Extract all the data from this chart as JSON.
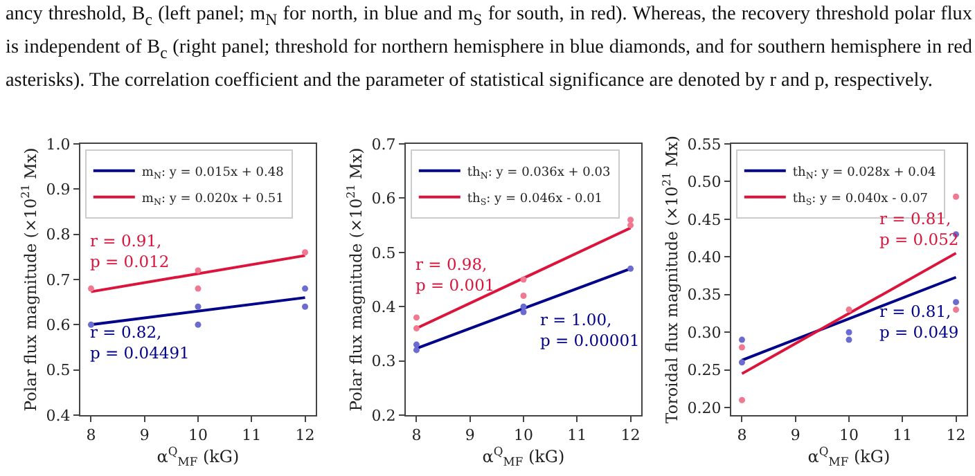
{
  "chart_data": [
    {
      "type": "line",
      "xlabel": "α$^{Q}$$_{MF}$ (kG)",
      "ylabel": "Polar flux magnitude (×10$^{21}$ Mx)",
      "xlim": [
        7.8,
        12.2
      ],
      "xticks": [
        8,
        9,
        10,
        11,
        12
      ],
      "ylim": [
        0.4,
        1.0
      ],
      "yticks": [
        0.4,
        0.5,
        0.6,
        0.7,
        0.8,
        0.9,
        {
          "value": 1.0,
          "label": "1.0"
        }
      ],
      "legend": "top left",
      "grid": false,
      "series": [
        {
          "name": "m$_{N}$: y = 0.015x + 0.48",
          "color": "#00008b",
          "x": [
            8,
            12
          ],
          "values": [
            0.6,
            0.66
          ]
        },
        {
          "name": "m$_{N}$: y = 0.020x + 0.51",
          "color": "#dc143c",
          "x": [
            8,
            12
          ],
          "values": [
            0.673,
            0.753
          ]
        },
        {
          "type": "scatter",
          "marker": "circle",
          "color": "#6b6bd0",
          "x": [
            8,
            10,
            10,
            12,
            12
          ],
          "values": [
            0.6,
            0.6,
            0.64,
            0.64,
            0.68
          ]
        },
        {
          "type": "scatter",
          "marker": "circle",
          "color": "#f07890",
          "x": [
            8,
            10,
            10,
            12
          ],
          "values": [
            0.68,
            0.68,
            0.72,
            0.76
          ]
        }
      ],
      "annotations": [
        "ancy threshold, B$_{c}$ (left panel; m$_{N}$ for north, in blue and m$_{S}$ for south, in red). Whereas, the recovery threshold polar flux is independent of B$_{c}$ (right panel; threshold for northern hemisphere in blue diamonds, and for southern hemisphere in red asterisks). The correlation coefficient and the parameter of statistical significance are denoted by r and p, respectively.",
        "r = 0.82,\np = 0.04491",
        "r = 0.91,\np = 0.012"
      ]
    },
    {
      "type": "line",
      "xlabel": "α$^{Q}$$_{MF}$ (kG)",
      "ylabel": "Polar flux magnitude (×10$^{21}$ Mx)",
      "xlim": [
        7.8,
        12.2
      ],
      "xticks": [
        8,
        9,
        10,
        11,
        12
      ],
      "ylim": [
        0.2,
        0.7
      ],
      "yticks": [
        0.2,
        0.3,
        0.4,
        0.5,
        0.6,
        0.7
      ],
      "legend": "top left",
      "grid": false,
      "series": [
        {
          "name": "th$_{N}$: y = 0.036x + 0.03",
          "color": "#00008b",
          "x": [
            8,
            12
          ],
          "values": [
            0.323,
            0.47
          ]
        },
        {
          "name": "th$_{S}$: y = 0.046x - 0.01",
          "color": "#dc143c",
          "x": [
            8,
            12
          ],
          "values": [
            0.36,
            0.545
          ]
        },
        {
          "type": "scatter",
          "marker": "circle",
          "color": "#6b6bd0",
          "x": [
            8,
            8,
            10,
            10,
            12
          ],
          "values": [
            0.33,
            0.32,
            0.4,
            0.39,
            0.47
          ]
        },
        {
          "type": "scatter",
          "marker": "circle",
          "color": "#f07890",
          "x": [
            8,
            8,
            10,
            10,
            12,
            12
          ],
          "values": [
            0.38,
            0.36,
            0.45,
            0.42,
            0.56,
            0.55
          ]
        }
      ],
      "annotations": [
        "r = 1.00,\np = 0.00001",
        "r = 0.98,\np = 0.001"
      ]
    },
    {
      "type": "line",
      "xlabel": "α$^{Q}$$_{MF}$ (kG)",
      "ylabel": "Toroidal flux magnitude (×10$^{21}$ Mx)",
      "xlim": [
        7.8,
        12.2
      ],
      "xticks": [
        8,
        9,
        10,
        11,
        12
      ],
      "ylim": [
        0.19,
        0.55
      ],
      "yticks": [
        {
          "value": 0.2,
          "label": "0.20"
        },
        0.25,
        {
          "value": 0.3,
          "label": "0.30"
        },
        0.35,
        {
          "value": 0.4,
          "label": "0.40"
        },
        0.45,
        {
          "value": 0.5,
          "label": "0.50"
        },
        0.55
      ],
      "legend": "top left",
      "grid": false,
      "series": [
        {
          "name": "th$_{N}$: y = 0.028x + 0.04",
          "color": "#00008b",
          "x": [
            8,
            12
          ],
          "values": [
            0.263,
            0.373
          ]
        },
        {
          "name": "th$_{S}$: y = 0.040x - 0.07",
          "color": "#dc143c",
          "x": [
            8,
            12
          ],
          "values": [
            0.245,
            0.405
          ]
        },
        {
          "type": "scatter",
          "marker": "circle",
          "color": "#6b6bd0",
          "x": [
            8,
            8,
            10,
            10,
            12,
            12
          ],
          "values": [
            0.29,
            0.26,
            0.3,
            0.29,
            0.43,
            0.34
          ]
        },
        {
          "type": "scatter",
          "marker": "circle",
          "color": "#f07890",
          "x": [
            8,
            8,
            10,
            12,
            12
          ],
          "values": [
            0.28,
            0.21,
            0.33,
            0.48,
            0.33
          ]
        }
      ],
      "annotations": [
        "r = 0.81,\np = 0.049",
        "r = 0.81,\np = 0.052"
      ]
    }
  ]
}
